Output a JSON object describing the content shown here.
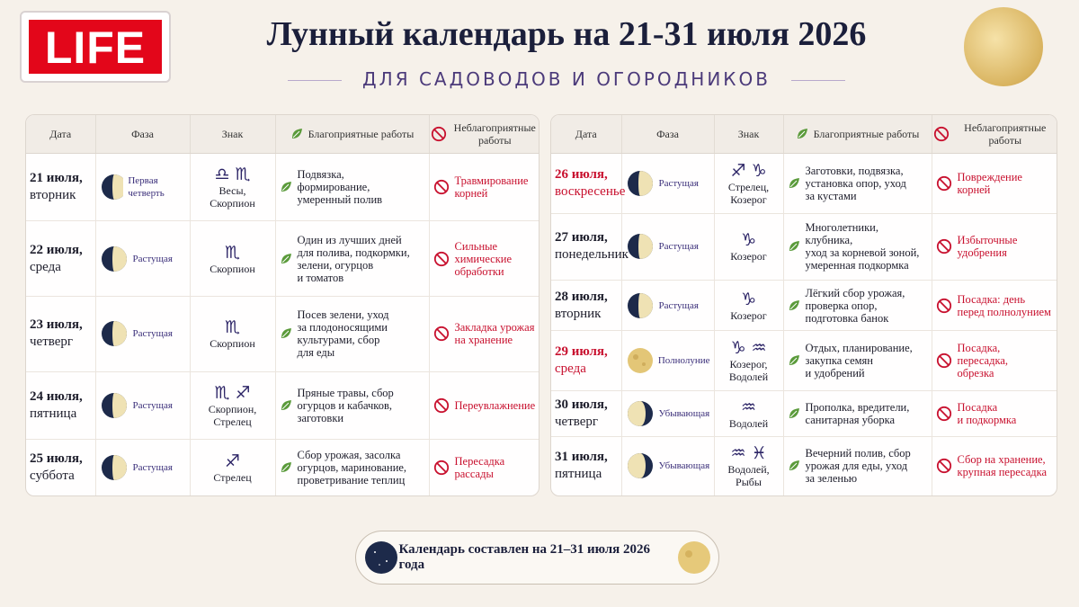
{
  "logo": "LIFE",
  "title": "Лунный календарь на 21-31 июля 2026",
  "subtitle": "ДЛЯ САДОВОДОВ И ОГОРОДНИКОВ",
  "headers": [
    "Дата",
    "Фаза",
    "Знак",
    "Благоприятные работы",
    "Неблагоприятные работы"
  ],
  "tables": [
    {
      "rows": [
        {
          "date": "21 июля,",
          "weekday": "вторник",
          "phase": "Первая четверть",
          "symbols": "♎︎ ♏︎",
          "sign": "Весы,\nСкорпион",
          "good": "Подвязка,\nформирование,\nумеренный полив",
          "bad": "Травмирование\nкорней"
        },
        {
          "date": "22 июля,",
          "weekday": "среда",
          "phase": "Растущая",
          "symbols": "♏︎",
          "sign": "Скорпион",
          "good": "Один из лучших дней\nдля полива, подкормки,\nзелени, огурцов\nи томатов",
          "bad": "Сильные\nхимические\nобработки"
        },
        {
          "date": "23 июля,",
          "weekday": "четверг",
          "phase": "Растущая",
          "symbols": "♏︎",
          "sign": "Скорпион",
          "good": "Посев зелени, уход\nза плодоносящими\nкультурами, сбор\nдля еды",
          "bad": "Закладка урожая\nна хранение"
        },
        {
          "date": "24 июля,",
          "weekday": "пятница",
          "phase": "Растущая",
          "symbols": "♏︎ ♐︎",
          "sign": "Скорпион,\nСтрелец",
          "good": "Пряные травы, сбор\nогурцов и кабачков,\nзаготовки",
          "bad": "Переувлажнение"
        },
        {
          "date": "25 июля,",
          "weekday": "суббота",
          "phase": "Растущая",
          "symbols": "♐︎",
          "sign": "Стрелец",
          "good": "Сбор урожая, засолка\nогурцов, маринование,\nпроветривание теплиц",
          "bad": "Пересадка\nрассады"
        }
      ]
    },
    {
      "rows": [
        {
          "date": "26 июля,",
          "weekday": "воскресенье",
          "date_color": "#c8102e",
          "phase": "Растущая",
          "symbols": "♐︎ ♑︎",
          "sign": "Стрелец,\nКозерог",
          "good": "Заготовки, подвязка,\nустановка опор, уход\nза кустами",
          "bad": "Повреждение\nкорней"
        },
        {
          "date": "27 июля,",
          "weekday": "понедельник",
          "phase": "Растущая",
          "symbols": "♑︎",
          "sign": "Козерог",
          "good": "Многолетники, клубника,\nуход за корневой зоной,\nумеренная подкормка",
          "bad": "Избыточные\nудобрения"
        },
        {
          "date": "28 июля,",
          "weekday": "вторник",
          "phase": "Растущая",
          "symbols": "♑︎",
          "sign": "Козерог",
          "good": "Лёгкий сбор урожая,\nпроверка опор,\nподготовка банок",
          "bad": "Посадка: день\nперед полнолунием"
        },
        {
          "date": "29 июля,",
          "weekday": "среда",
          "date_color": "#c8102e",
          "phase": "Полнолуние",
          "symbols": "♑︎ ♒︎",
          "sign": "Козерог,\nВодолей",
          "good": "Отдых, планирование,\nзакупка семян\nи удобрений",
          "bad": "Посадка,\nпересадка,\nобрезка"
        },
        {
          "date": "30 июля,",
          "weekday": "четверг",
          "phase": "Убывающая",
          "symbols": "♒︎",
          "sign": "Водолей",
          "good": "Прополка, вредители,\nсанитарная уборка",
          "bad": "Посадка\nи подкормка"
        },
        {
          "date": "31 июля,",
          "weekday": "пятница",
          "phase": "Убывающая",
          "symbols": "♒︎ ♓︎",
          "sign": "Водолей,\nРыбы",
          "good": "Вечерний полив, сбор\nурожая для еды, уход\nза зеленью",
          "bad": "Сбор на хранение,\nкрупная пересадка"
        }
      ]
    }
  ],
  "footer": "Календарь составлен на 21–31 июля 2026 года"
}
